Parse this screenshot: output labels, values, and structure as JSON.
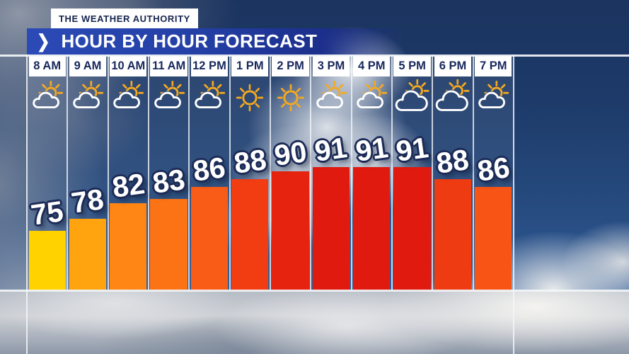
{
  "brand": {
    "authority_label": "THE WEATHER AUTHORITY"
  },
  "banner": {
    "chevron": "❯",
    "title": "HOUR BY HOUR FORECAST"
  },
  "colors": {
    "banner_blue_left": "#2C4AB6",
    "banner_blue_right": "#1C2F8C",
    "navy_text": "#18285C",
    "sun_yellow": "#F5A91F",
    "cloud_white": "#FFFFFF",
    "grid_line": "#F3F6F9",
    "temp_outline_navy": "#1C2B57"
  },
  "chart_data": {
    "type": "bar",
    "title": "Hour by Hour Forecast",
    "categories": [
      "8 AM",
      "9 AM",
      "10 AM",
      "11 AM",
      "12 PM",
      "1 PM",
      "2 PM",
      "3 PM",
      "4 PM",
      "5 PM",
      "6 PM",
      "7 PM"
    ],
    "values": [
      75,
      78,
      82,
      83,
      86,
      88,
      90,
      91,
      91,
      91,
      88,
      86
    ],
    "icons": [
      "partly-cloudy",
      "partly-cloudy",
      "partly-cloudy",
      "partly-cloudy",
      "partly-cloudy",
      "sunny",
      "sunny",
      "partly-cloudy",
      "partly-cloudy",
      "mostly-cloudy",
      "mostly-cloudy",
      "partly-cloudy"
    ],
    "bar_colors": [
      "#FFD200",
      "#FFA30F",
      "#FF8514",
      "#FC7316",
      "#F95C16",
      "#F23D13",
      "#E5230F",
      "#E01A0E",
      "#E01A0E",
      "#E01A0E",
      "#EF3B12",
      "#F75415"
    ],
    "ylim": [
      60,
      95
    ],
    "grid": true,
    "legend_position": "none"
  }
}
